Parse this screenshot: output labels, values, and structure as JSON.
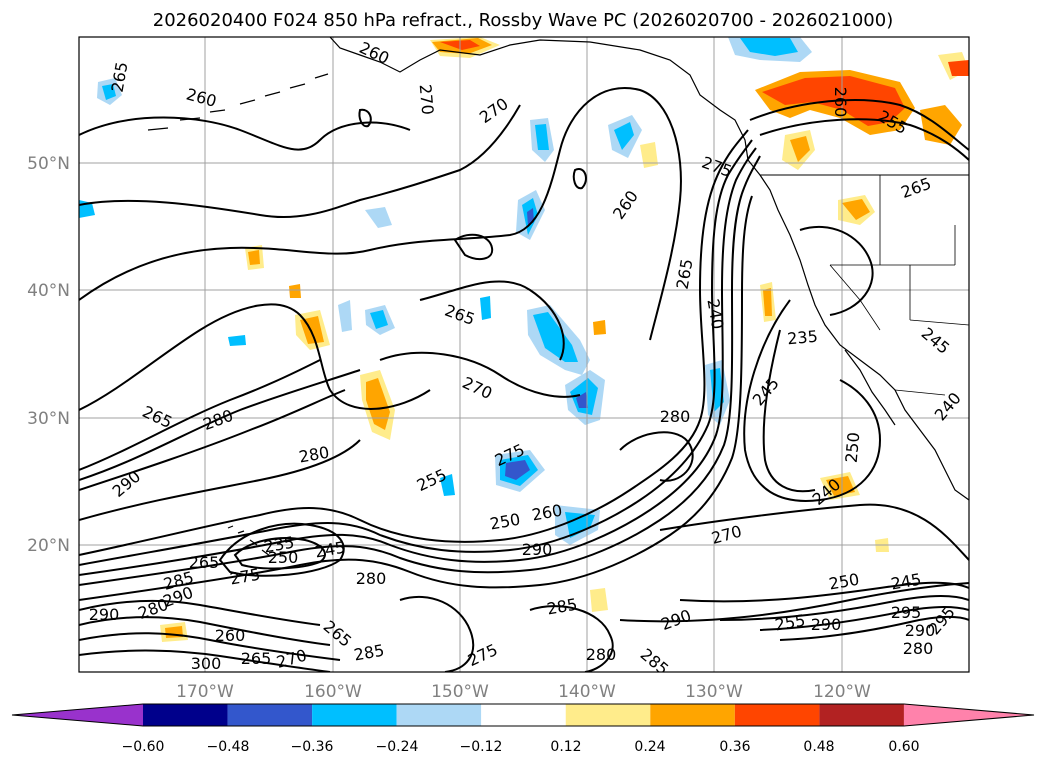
{
  "title": "2026020400 F024 850 hPa refract., Rossby Wave PC (2026020700 - 2026021000)",
  "map": {
    "lat_labels": [
      "50°N",
      "40°N",
      "30°N",
      "20°N"
    ],
    "lon_labels": [
      "170°W",
      "160°W",
      "150°W",
      "140°W",
      "130°W",
      "120°W"
    ]
  },
  "contour_labels": [
    {
      "text": "265",
      "rot": -80
    },
    {
      "text": "260",
      "rot": 15
    },
    {
      "text": "270",
      "rot": 85
    },
    {
      "text": "270",
      "rot": -35
    },
    {
      "text": "260",
      "rot": 25
    },
    {
      "text": "260",
      "rot": 90
    },
    {
      "text": "255",
      "rot": 30
    },
    {
      "text": "275",
      "rot": 20
    },
    {
      "text": "265",
      "rot": -20
    },
    {
      "text": "260",
      "rot": -55
    },
    {
      "text": "265",
      "rot": 20
    },
    {
      "text": "270",
      "rot": 25
    },
    {
      "text": "265",
      "rot": -80
    },
    {
      "text": "240",
      "rot": 80
    },
    {
      "text": "235",
      "rot": -5
    },
    {
      "text": "245",
      "rot": -50
    },
    {
      "text": "245",
      "rot": 40
    },
    {
      "text": "240",
      "rot": -50
    },
    {
      "text": "265",
      "rot": 25
    },
    {
      "text": "280",
      "rot": -20
    },
    {
      "text": "280",
      "rot": -10
    },
    {
      "text": "290",
      "rot": -40
    },
    {
      "text": "275",
      "rot": -25
    },
    {
      "text": "255",
      "rot": -25
    },
    {
      "text": "280",
      "rot": 0
    },
    {
      "text": "250",
      "rot": -85
    },
    {
      "text": "240",
      "rot": -40
    },
    {
      "text": "250",
      "rot": -10
    },
    {
      "text": "260",
      "rot": -10
    },
    {
      "text": "290",
      "rot": 0
    },
    {
      "text": "235",
      "rot": -10
    },
    {
      "text": "250",
      "rot": 0
    },
    {
      "text": "245",
      "rot": -10
    },
    {
      "text": "270",
      "rot": -15
    },
    {
      "text": "265",
      "rot": 0
    },
    {
      "text": "275",
      "rot": -10
    },
    {
      "text": "285",
      "rot": -15
    },
    {
      "text": "280",
      "rot": 0
    },
    {
      "text": "290",
      "rot": -20
    },
    {
      "text": "290",
      "rot": 0
    },
    {
      "text": "280",
      "rot": -20
    },
    {
      "text": "260",
      "rot": 0
    },
    {
      "text": "265",
      "rot": 40
    },
    {
      "text": "285",
      "rot": -10
    },
    {
      "text": "275",
      "rot": -25
    },
    {
      "text": "270",
      "rot": -15
    },
    {
      "text": "265",
      "rot": 0
    },
    {
      "text": "285",
      "rot": -10
    },
    {
      "text": "290",
      "rot": -20
    },
    {
      "text": "280",
      "rot": 0
    },
    {
      "text": "285",
      "rot": 40
    },
    {
      "text": "250",
      "rot": -10
    },
    {
      "text": "245",
      "rot": -10
    },
    {
      "text": "255",
      "rot": -10
    },
    {
      "text": "290",
      "rot": 0
    },
    {
      "text": "295",
      "rot": 0
    },
    {
      "text": "280",
      "rot": 0
    },
    {
      "text": "295",
      "rot": -50
    },
    {
      "text": "290",
      "rot": 0
    },
    {
      "text": "300",
      "rot": 0
    }
  ],
  "colorbar": {
    "ticks": [
      "−0.60",
      "−0.48",
      "−0.36",
      "−0.24",
      "−0.12",
      "0.12",
      "0.24",
      "0.36",
      "0.48",
      "0.60"
    ],
    "colors": [
      "#9932cc",
      "#00008b",
      "#3357cc",
      "#00bfff",
      "#add8f5",
      "#ffffff",
      "#ffec8b",
      "#ffa500",
      "#ff4500",
      "#b22222",
      "#ff82ab"
    ]
  }
}
